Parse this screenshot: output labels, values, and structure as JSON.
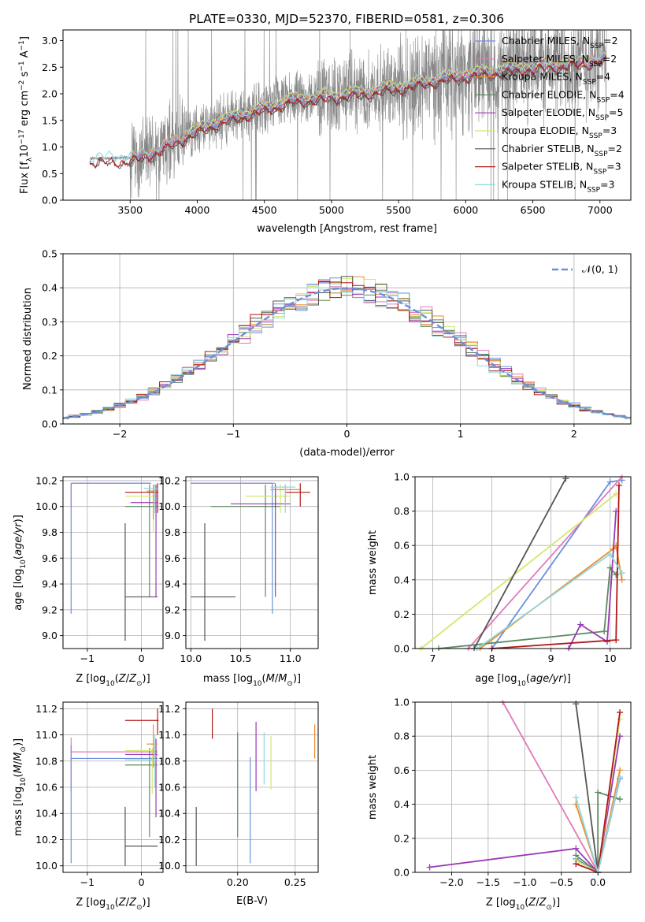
{
  "figure_title": "PLATE=0330, MJD=52370, FIBERID=0581, z=0.306",
  "colors": {
    "Chabrier MILES": "#6a8fdd",
    "Salpeter MILES": "#e07bb8",
    "Kroupa MILES": "#f08a2a",
    "Chabrier ELODIE": "#5e8a60",
    "Salpeter ELODIE": "#9a3ab4",
    "Kroupa ELODIE": "#d2e86a",
    "Chabrier STELIB": "#555555",
    "Salpeter STELIB": "#b01818",
    "Kroupa STELIB": "#8ed8e0",
    "data": "#888888",
    "gaussian": "#6a8fdd"
  },
  "chart_data": [
    {
      "type": "line",
      "title": "PLATE=0330, MJD=52370, FIBERID=0581, z=0.306",
      "xlabel": "wavelength [Angstrom, rest frame]",
      "ylabel": "Flux [f_λ 10^-17 erg cm^-2 s^-1 A^-1]",
      "xlim": [
        3000,
        7230
      ],
      "ylim": [
        0,
        3.2
      ],
      "xticks": [
        "3500",
        "4000",
        "4500",
        "5000",
        "5500",
        "6000",
        "6500",
        "7000"
      ],
      "yticks": [
        "0.0",
        "0.5",
        "1.0",
        "1.5",
        "2.0",
        "2.5",
        "3.0"
      ],
      "legend_position": "right",
      "legend": [
        {
          "base": "Chabrier MILES, N",
          "sub": "SSP",
          "rest": "=2"
        },
        {
          "base": "Salpeter MILES, N",
          "sub": "SSP",
          "rest": "=2"
        },
        {
          "base": "Kroupa MILES, N",
          "sub": "SSP",
          "rest": "=4"
        },
        {
          "base": "Chabrier ELODIE, N",
          "sub": "SSP",
          "rest": "=4"
        },
        {
          "base": "Salpeter ELODIE, N",
          "sub": "SSP",
          "rest": "=5"
        },
        {
          "base": "Kroupa ELODIE, N",
          "sub": "SSP",
          "rest": "=3"
        },
        {
          "base": "Chabrier STELIB, N",
          "sub": "SSP",
          "rest": "=2"
        },
        {
          "base": "Salpeter STELIB, N",
          "sub": "SSP",
          "rest": "=3"
        },
        {
          "base": "Kroupa STELIB, N",
          "sub": "SSP",
          "rest": "=3"
        }
      ],
      "model_ranges": [
        {
          "name": "Chabrier MILES",
          "x": [
            3520,
            7050
          ]
        },
        {
          "name": "Salpeter MILES",
          "x": [
            3520,
            7050
          ]
        },
        {
          "name": "Kroupa MILES",
          "x": [
            3520,
            7050
          ]
        },
        {
          "name": "Chabrier ELODIE",
          "x": [
            3900,
            6800
          ]
        },
        {
          "name": "Salpeter ELODIE",
          "x": [
            3900,
            6800
          ]
        },
        {
          "name": "Kroupa ELODIE",
          "x": [
            3900,
            6800
          ]
        },
        {
          "name": "Chabrier STELIB",
          "x": [
            3200,
            7050
          ]
        },
        {
          "name": "Salpeter STELIB",
          "x": [
            3200,
            7050
          ]
        },
        {
          "name": "Kroupa STELIB",
          "x": [
            3200,
            7050
          ]
        }
      ],
      "continuum": {
        "x": [
          3200,
          3500,
          3700,
          3900,
          4100,
          4300,
          4500,
          4700,
          5000,
          5200,
          5500,
          5800,
          6000,
          6300,
          6600,
          6800,
          7000,
          7050
        ],
        "y": [
          0.78,
          0.8,
          0.95,
          1.22,
          1.45,
          1.6,
          1.75,
          1.9,
          1.98,
          2.04,
          2.15,
          2.3,
          2.38,
          2.48,
          2.55,
          2.6,
          2.66,
          2.68
        ]
      },
      "data_range": [
        3200,
        7050
      ]
    },
    {
      "type": "bar",
      "xlabel": "(data-model)/error",
      "ylabel": "Normed distribution",
      "xlim": [
        -2.5,
        2.5
      ],
      "ylim": [
        0,
        0.5
      ],
      "xticks": [
        "−2",
        "−1",
        "0",
        "1",
        "2"
      ],
      "yticks": [
        "0.0",
        "0.1",
        "0.2",
        "0.3",
        "0.4",
        "0.5"
      ],
      "legend_position": "top-right",
      "legend_label": "𝒩(0, 1)",
      "bin_width": 0.1,
      "histogram_shape": "standard normal, 9 overlapping step histograms"
    },
    {
      "type": "scatter",
      "xlabel": "Z [log10(Z/Z⊙)]",
      "ylabel": "age [log10(age/yr)]",
      "xlim": [
        -1.45,
        0.4
      ],
      "ylim": [
        8.9,
        10.23
      ],
      "xticks": [
        "−1",
        "0"
      ],
      "yticks": [
        "9.0",
        "9.2",
        "9.4",
        "9.6",
        "9.8",
        "10.0",
        "10.2"
      ],
      "crosses": [
        {
          "name": "Salpeter MILES",
          "x": [
            -1.3,
            0.18
          ],
          "y": [
            9.99,
            10.18
          ],
          "cx": -1.3,
          "cy": 10.18
        },
        {
          "name": "Chabrier MILES",
          "x": [
            -1.3,
            0.18
          ],
          "y": [
            9.17,
            10.18
          ],
          "cx": -1.3,
          "cy": 10.18
        },
        {
          "name": "Chabrier STELIB",
          "x": [
            -0.3,
            0.3
          ],
          "y": [
            8.96,
            9.87
          ],
          "cx": -0.3,
          "cy": 9.3
        },
        {
          "name": "Chabrier ELODIE",
          "x": [
            -0.3,
            0.3
          ],
          "y": [
            9.3,
            10.17
          ],
          "cx": 0.15,
          "cy": 10.0
        },
        {
          "name": "Kroupa ELODIE",
          "x": [
            -0.3,
            0.3
          ],
          "y": [
            9.8,
            10.17
          ],
          "cx": 0.22,
          "cy": 10.08
        },
        {
          "name": "Salpeter ELODIE",
          "x": [
            -0.2,
            0.3
          ],
          "y": [
            9.3,
            10.17
          ],
          "cx": 0.27,
          "cy": 10.03
        },
        {
          "name": "Kroupa MILES",
          "x": [
            0.1,
            0.3
          ],
          "y": [
            9.9,
            10.17
          ],
          "cx": 0.22,
          "cy": 10.12
        },
        {
          "name": "Salpeter STELIB",
          "x": [
            -0.3,
            0.3
          ],
          "y": [
            9.95,
            10.18
          ],
          "cx": 0.3,
          "cy": 10.11
        },
        {
          "name": "Kroupa STELIB",
          "x": [
            0.05,
            0.3
          ],
          "y": [
            9.95,
            10.17
          ],
          "cx": 0.25,
          "cy": 10.14
        }
      ]
    },
    {
      "type": "scatter",
      "xlabel": "mass [log10(M/M⊙)]",
      "ylabel": "",
      "xlim": [
        9.95,
        11.28
      ],
      "ylim": [
        8.9,
        10.23
      ],
      "xticks": [
        "10.0",
        "10.5",
        "11.0"
      ],
      "yticks": [
        "9.0",
        "9.2",
        "9.4",
        "9.6",
        "9.8",
        "10.0",
        "10.2"
      ],
      "crosses": [
        {
          "name": "Salpeter MILES",
          "x": [
            10.0,
            10.85
          ],
          "y": [
            9.99,
            10.18
          ],
          "cx": 10.85,
          "cy": 10.18
        },
        {
          "name": "Chabrier MILES",
          "x": [
            10.0,
            10.82
          ],
          "y": [
            9.17,
            10.18
          ],
          "cx": 10.82,
          "cy": 10.18
        },
        {
          "name": "Chabrier STELIB",
          "x": [
            10.0,
            10.45
          ],
          "y": [
            8.96,
            9.87
          ],
          "cx": 10.14,
          "cy": 9.3
        },
        {
          "name": "Chabrier ELODIE",
          "x": [
            10.2,
            10.9
          ],
          "y": [
            9.3,
            10.17
          ],
          "cx": 10.75,
          "cy": 10.0
        },
        {
          "name": "Kroupa ELODIE",
          "x": [
            10.55,
            11.0
          ],
          "y": [
            9.95,
            10.17
          ],
          "cx": 10.9,
          "cy": 10.08
        },
        {
          "name": "Salpeter ELODIE",
          "x": [
            10.4,
            11.0
          ],
          "y": [
            9.3,
            10.17
          ],
          "cx": 10.85,
          "cy": 10.02
        },
        {
          "name": "Kroupa MILES",
          "x": [
            10.8,
            11.1
          ],
          "y": [
            10.0,
            10.17
          ],
          "cx": 10.95,
          "cy": 10.13
        },
        {
          "name": "Salpeter STELIB",
          "x": [
            10.95,
            11.2
          ],
          "y": [
            10.0,
            10.18
          ],
          "cx": 11.1,
          "cy": 10.11
        },
        {
          "name": "Kroupa STELIB",
          "x": [
            10.8,
            11.05
          ],
          "y": [
            9.95,
            10.17
          ],
          "cx": 10.95,
          "cy": 10.15
        }
      ]
    },
    {
      "type": "line",
      "xlabel": "age [log10(age/yr)]",
      "ylabel": "mass weight",
      "xlim": [
        6.7,
        10.35
      ],
      "ylim": [
        0,
        1.0
      ],
      "xticks": [
        "7",
        "8",
        "9",
        "10"
      ],
      "yticks": [
        "0.0",
        "0.2",
        "0.4",
        "0.6",
        "0.8",
        "1.0"
      ],
      "series": [
        {
          "name": "Chabrier MILES",
          "x": [
            8.0,
            10.0,
            10.2
          ],
          "y": [
            0.0,
            0.97,
            0.98
          ]
        },
        {
          "name": "Salpeter MILES",
          "x": [
            7.6,
            10.2
          ],
          "y": [
            0.0,
            1.0
          ]
        },
        {
          "name": "Kroupa MILES",
          "x": [
            7.8,
            10.05,
            10.1,
            10.2
          ],
          "y": [
            0.0,
            0.58,
            0.6,
            0.4
          ]
        },
        {
          "name": "Chabrier ELODIE",
          "x": [
            7.1,
            9.9,
            10.0,
            10.1
          ],
          "y": [
            0.0,
            0.1,
            0.47,
            0.43
          ]
        },
        {
          "name": "Salpeter ELODIE",
          "x": [
            9.3,
            9.5,
            9.95,
            10.1
          ],
          "y": [
            0.0,
            0.14,
            0.04,
            0.8
          ]
        },
        {
          "name": "Kroupa ELODIE",
          "x": [
            6.8,
            10.1
          ],
          "y": [
            0.0,
            0.9
          ]
        },
        {
          "name": "Chabrier STELIB",
          "x": [
            7.7,
            9.25
          ],
          "y": [
            0.0,
            0.99
          ]
        },
        {
          "name": "Salpeter STELIB",
          "x": [
            8.0,
            10.1,
            10.15
          ],
          "y": [
            0.0,
            0.05,
            0.95
          ]
        },
        {
          "name": "Kroupa STELIB",
          "x": [
            7.75,
            10.0,
            10.2
          ],
          "y": [
            0.0,
            0.55,
            0.44
          ]
        }
      ]
    },
    {
      "type": "scatter",
      "xlabel": "Z [log10(Z/Z⊙)]",
      "ylabel": "mass [log10(M/M⊙)]",
      "xlim": [
        -1.45,
        0.4
      ],
      "ylim": [
        9.95,
        11.25
      ],
      "xticks": [
        "−1",
        "0"
      ],
      "yticks": [
        "10.0",
        "10.2",
        "10.4",
        "10.6",
        "10.8",
        "11.0",
        "11.2"
      ],
      "crosses": [
        {
          "name": "Salpeter MILES",
          "x": [
            -1.3,
            0.3
          ],
          "y": [
            10.57,
            10.98
          ],
          "cx": -1.3,
          "cy": 10.87
        },
        {
          "name": "Chabrier MILES",
          "x": [
            -1.3,
            0.3
          ],
          "y": [
            10.02,
            10.92
          ],
          "cx": -1.3,
          "cy": 10.82
        },
        {
          "name": "Chabrier STELIB",
          "x": [
            -0.3,
            0.3
          ],
          "y": [
            10.0,
            10.45
          ],
          "cx": -0.3,
          "cy": 10.15
        },
        {
          "name": "Chabrier ELODIE",
          "x": [
            -0.3,
            0.3
          ],
          "y": [
            10.22,
            10.9
          ],
          "cx": 0.15,
          "cy": 10.77
        },
        {
          "name": "Kroupa ELODIE",
          "x": [
            -0.3,
            0.3
          ],
          "y": [
            10.55,
            10.9
          ],
          "cx": 0.2,
          "cy": 10.88
        },
        {
          "name": "Salpeter ELODIE",
          "x": [
            -0.3,
            0.3
          ],
          "y": [
            10.37,
            10.97
          ],
          "cx": 0.27,
          "cy": 10.85
        },
        {
          "name": "Kroupa MILES",
          "x": [
            0.1,
            0.3
          ],
          "y": [
            10.75,
            11.08
          ],
          "cx": 0.22,
          "cy": 10.93
        },
        {
          "name": "Salpeter STELIB",
          "x": [
            -0.3,
            0.32
          ],
          "y": [
            11.0,
            11.2
          ],
          "cx": 0.3,
          "cy": 11.11
        },
        {
          "name": "Kroupa STELIB",
          "x": [
            -0.3,
            0.3
          ],
          "y": [
            10.6,
            11.0
          ],
          "cx": 0.25,
          "cy": 10.81
        }
      ]
    },
    {
      "type": "scatter",
      "xlabel": "E(B-V)",
      "ylabel": "",
      "xlim": [
        0.155,
        0.27
      ],
      "ylim": [
        9.95,
        11.25
      ],
      "xticks": [
        "0.20",
        "0.25"
      ],
      "yticks": [
        "10.0",
        "10.2",
        "10.4",
        "10.6",
        "10.8",
        "11.0",
        "11.2"
      ],
      "vlines": [
        {
          "name": "Chabrier STELIB",
          "x": 0.164,
          "y": [
            10.0,
            10.45
          ]
        },
        {
          "name": "Salpeter STELIB",
          "x": 0.178,
          "y": [
            10.97,
            11.2
          ]
        },
        {
          "name": "Chabrier ELODIE",
          "x": 0.2,
          "y": [
            10.22,
            11.02
          ]
        },
        {
          "name": "Chabrier MILES",
          "x": 0.211,
          "y": [
            10.02,
            10.83
          ]
        },
        {
          "name": "Salpeter ELODIE",
          "x": 0.216,
          "y": [
            10.57,
            11.1
          ]
        },
        {
          "name": "Kroupa STELIB",
          "x": 0.223,
          "y": [
            10.62,
            11.02
          ]
        },
        {
          "name": "Kroupa ELODIE",
          "x": 0.229,
          "y": [
            10.58,
            10.99
          ]
        },
        {
          "name": "Kroupa MILES",
          "x": 0.267,
          "y": [
            10.82,
            11.08
          ]
        }
      ]
    },
    {
      "type": "line",
      "xlabel": "Z [log10(Z/Z⊙)]",
      "ylabel": "mass weight",
      "xlim": [
        -2.5,
        0.45
      ],
      "ylim": [
        0,
        1.0
      ],
      "xticks": [
        "−2.0",
        "−1.5",
        "−1.0",
        "−0.5",
        "0.0"
      ],
      "yticks": [
        "0.0",
        "0.2",
        "0.4",
        "0.6",
        "0.8",
        "1.0"
      ],
      "series": [
        {
          "name": "Chabrier MILES",
          "x": [
            -0.3,
            0.0,
            0.3
          ],
          "y": [
            0.08,
            0.0,
            0.55
          ]
        },
        {
          "name": "Salpeter MILES",
          "x": [
            -1.3,
            0.0
          ],
          "y": [
            1.0,
            0.0
          ]
        },
        {
          "name": "Kroupa MILES",
          "x": [
            -0.3,
            0.0,
            0.3
          ],
          "y": [
            0.4,
            0.0,
            0.6
          ]
        },
        {
          "name": "Chabrier ELODIE",
          "x": [
            -0.3,
            0.0,
            0.0,
            0.3
          ],
          "y": [
            0.1,
            0.0,
            0.47,
            0.43
          ]
        },
        {
          "name": "Salpeter ELODIE",
          "x": [
            -2.3,
            -0.3,
            0.0,
            0.3
          ],
          "y": [
            0.03,
            0.14,
            0.0,
            0.8
          ]
        },
        {
          "name": "Kroupa ELODIE",
          "x": [
            -0.3,
            0.0,
            0.3
          ],
          "y": [
            0.07,
            0.0,
            0.9
          ]
        },
        {
          "name": "Chabrier STELIB",
          "x": [
            -0.3,
            0.0
          ],
          "y": [
            0.99,
            0.0
          ]
        },
        {
          "name": "Salpeter STELIB",
          "x": [
            -0.3,
            0.0,
            0.3
          ],
          "y": [
            0.05,
            0.0,
            0.94
          ]
        },
        {
          "name": "Kroupa STELIB",
          "x": [
            -0.3,
            0.0,
            0.3
          ],
          "y": [
            0.44,
            0.0,
            0.56
          ]
        }
      ]
    }
  ]
}
